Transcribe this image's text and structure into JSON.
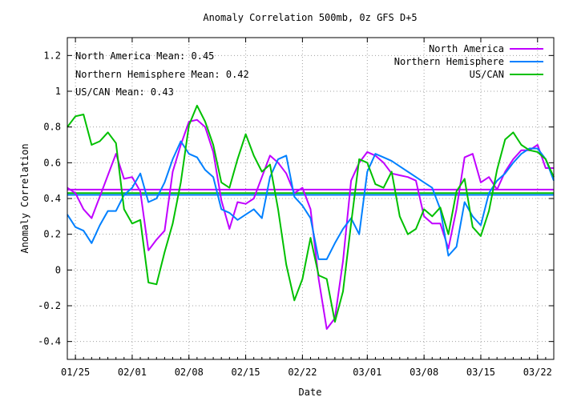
{
  "chart_data": {
    "type": "line",
    "title": "Anomaly Correlation 500mb, 0z GFS  D+5",
    "xlabel": "Date",
    "ylabel": "Anomaly Correlation",
    "ylim": [
      -0.5,
      1.3
    ],
    "yticks": [
      -0.4,
      -0.2,
      0,
      0.2,
      0.4,
      0.6,
      0.8,
      1,
      1.2
    ],
    "ytick_labels": [
      "-0.4",
      "-0.2",
      "0",
      "0.2",
      "0.4",
      "0.6",
      "0.8",
      "1",
      "1.2"
    ],
    "xlim": [
      "2016-01-24",
      "2016-03-24"
    ],
    "xticks": [
      "2016-01-25",
      "2016-02-01",
      "2016-02-08",
      "2016-02-15",
      "2016-02-22",
      "2016-03-01",
      "2016-03-08",
      "2016-03-15",
      "2016-03-22"
    ],
    "xtick_labels": [
      "01/25",
      "02/01",
      "02/08",
      "02/15",
      "02/22",
      "03/01",
      "03/08",
      "03/15",
      "03/22"
    ],
    "grid": true,
    "legend_position": "top-right",
    "x": [
      "2016-01-24",
      "2016-01-25",
      "2016-01-26",
      "2016-01-27",
      "2016-01-28",
      "2016-01-29",
      "2016-01-30",
      "2016-01-31",
      "2016-02-01",
      "2016-02-02",
      "2016-02-03",
      "2016-02-04",
      "2016-02-05",
      "2016-02-06",
      "2016-02-07",
      "2016-02-08",
      "2016-02-09",
      "2016-02-10",
      "2016-02-11",
      "2016-02-12",
      "2016-02-13",
      "2016-02-14",
      "2016-02-15",
      "2016-02-16",
      "2016-02-17",
      "2016-02-18",
      "2016-02-19",
      "2016-02-20",
      "2016-02-21",
      "2016-02-22",
      "2016-02-23",
      "2016-02-24",
      "2016-02-25",
      "2016-02-26",
      "2016-02-27",
      "2016-02-28",
      "2016-02-29",
      "2016-03-01",
      "2016-03-02",
      "2016-03-03",
      "2016-03-04",
      "2016-03-05",
      "2016-03-06",
      "2016-03-07",
      "2016-03-08",
      "2016-03-09",
      "2016-03-10",
      "2016-03-11",
      "2016-03-12",
      "2016-03-13",
      "2016-03-14",
      "2016-03-15",
      "2016-03-16",
      "2016-03-17",
      "2016-03-18",
      "2016-03-19",
      "2016-03-20",
      "2016-03-21",
      "2016-03-22",
      "2016-03-23",
      "2016-03-24"
    ],
    "series": [
      {
        "name": "North America",
        "color": "#c000ff",
        "mean": 0.45,
        "values": [
          0.46,
          0.43,
          0.34,
          0.29,
          0.41,
          0.53,
          0.65,
          0.51,
          0.52,
          0.44,
          0.11,
          0.17,
          0.22,
          0.55,
          0.7,
          0.83,
          0.84,
          0.8,
          0.66,
          0.39,
          0.23,
          0.38,
          0.37,
          0.4,
          0.52,
          0.64,
          0.6,
          0.54,
          0.43,
          0.46,
          0.34,
          -0.05,
          -0.33,
          -0.27,
          0.05,
          0.5,
          0.6,
          0.66,
          0.64,
          0.6,
          0.54,
          0.53,
          0.52,
          0.5,
          0.3,
          0.26,
          0.26,
          0.12,
          0.34,
          0.63,
          0.65,
          0.49,
          0.52,
          0.45,
          0.55,
          0.62,
          0.67,
          0.67,
          0.7,
          0.57,
          0.57
        ]
      },
      {
        "name": "Northern Hemisphere",
        "color": "#0080ff",
        "mean": 0.42,
        "values": [
          0.31,
          0.24,
          0.22,
          0.15,
          0.25,
          0.33,
          0.33,
          0.42,
          0.46,
          0.54,
          0.38,
          0.4,
          0.49,
          0.62,
          0.72,
          0.65,
          0.63,
          0.56,
          0.52,
          0.34,
          0.32,
          0.28,
          0.31,
          0.34,
          0.29,
          0.52,
          0.62,
          0.64,
          0.41,
          0.36,
          0.29,
          0.06,
          0.06,
          0.15,
          0.23,
          0.29,
          0.2,
          0.55,
          0.65,
          0.63,
          0.61,
          0.58,
          0.55,
          0.52,
          0.49,
          0.46,
          0.34,
          0.08,
          0.13,
          0.38,
          0.3,
          0.25,
          0.43,
          0.5,
          0.54,
          0.6,
          0.65,
          0.68,
          0.68,
          0.62,
          0.5
        ]
      },
      {
        "name": "US/CAN",
        "color": "#00c000",
        "mean": 0.43,
        "values": [
          0.8,
          0.86,
          0.87,
          0.7,
          0.72,
          0.77,
          0.71,
          0.34,
          0.26,
          0.28,
          -0.07,
          -0.08,
          0.1,
          0.26,
          0.49,
          0.81,
          0.92,
          0.83,
          0.7,
          0.49,
          0.46,
          0.62,
          0.76,
          0.64,
          0.55,
          0.59,
          0.34,
          0.03,
          -0.17,
          -0.05,
          0.18,
          -0.03,
          -0.05,
          -0.29,
          -0.12,
          0.26,
          0.62,
          0.6,
          0.48,
          0.46,
          0.55,
          0.3,
          0.2,
          0.23,
          0.34,
          0.3,
          0.35,
          0.2,
          0.44,
          0.51,
          0.24,
          0.19,
          0.33,
          0.56,
          0.73,
          0.77,
          0.7,
          0.67,
          0.66,
          0.62,
          0.52
        ]
      }
    ],
    "annotations": [
      "North America Mean: 0.45",
      "Northern Hemisphere Mean: 0.42",
      "US/CAN Mean: 0.43"
    ]
  }
}
